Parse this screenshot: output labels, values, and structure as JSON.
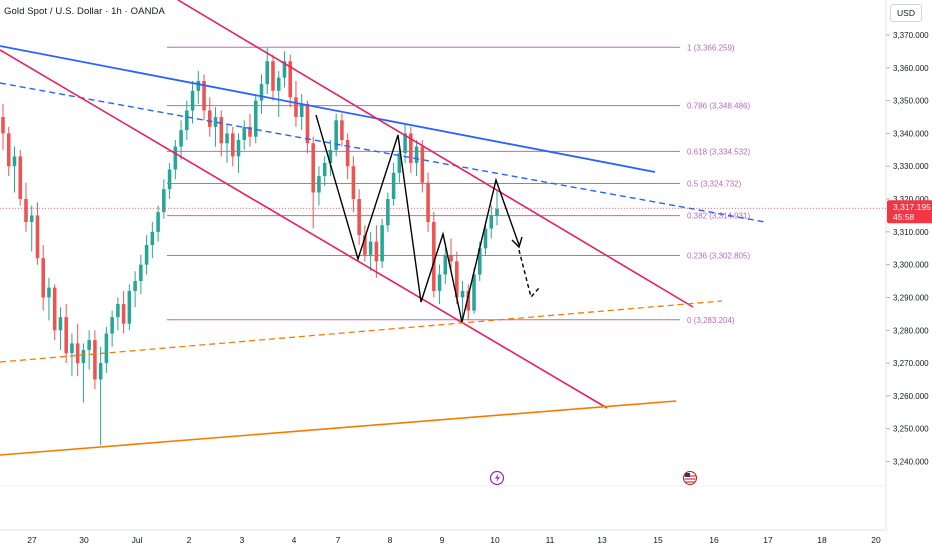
{
  "header": {
    "symbol_title": "Gold Spot / U.S. Dollar · 1h · OANDA",
    "currency": "USD"
  },
  "chart_data": {
    "type": "candlestick",
    "y_axis": {
      "range": [
        3233,
        3378
      ],
      "tick_labels": [
        "3,370.000",
        "3,360.000",
        "3,350.000",
        "3,340.000",
        "3,330.000",
        "3,320.000",
        "3,310.000",
        "3,300.000",
        "3,290.000",
        "3,280.000",
        "3,270.000",
        "3,260.000",
        "3,250.000",
        "3,240.000"
      ],
      "tick_values": [
        3370,
        3360,
        3350,
        3340,
        3330,
        3320,
        3310,
        3300,
        3290,
        3280,
        3270,
        3260,
        3250,
        3240
      ]
    },
    "x_axis": {
      "tick_labels": [
        "27",
        "30",
        "Jul",
        "2",
        "3",
        "4",
        "7",
        "8",
        "9",
        "10",
        "11",
        "13",
        "15",
        "16",
        "17",
        "18",
        "20"
      ]
    },
    "last_price": {
      "value_label": "3,317.195",
      "countdown": "45:58",
      "value": 3317.195,
      "color": "#f23645"
    },
    "fibonacci": {
      "color": "#ba68c8",
      "levels": [
        {
          "label": "1 (3,366.259)",
          "value": 3366.259
        },
        {
          "label": "0.786 (3,348.486)",
          "value": 3348.486
        },
        {
          "label": "0.618 (3,334.532)",
          "value": 3334.532
        },
        {
          "label": "0.5 (3,324.732)",
          "value": 3324.732
        },
        {
          "label": "0.382 (3,314.931)",
          "value": 3314.931
        },
        {
          "label": "0.236 (3,302.805)",
          "value": 3302.805
        },
        {
          "label": "0 (3,283.204)",
          "value": 3283.204
        }
      ]
    },
    "colors": {
      "up": "#26a69a",
      "down": "#ef5350",
      "blue_trendline": "#2962ff",
      "channel": "#e91e63",
      "orange_trendline": "#f57c00",
      "zigzag": "#000000"
    },
    "candles": [
      [
        3345,
        3349,
        3335,
        3340
      ],
      [
        3340,
        3342,
        3327,
        3330
      ],
      [
        3330,
        3336,
        3322,
        3333
      ],
      [
        3333,
        3335,
        3318,
        3320
      ],
      [
        3320,
        3325,
        3310,
        3313
      ],
      [
        3313,
        3318,
        3304,
        3315
      ],
      [
        3315,
        3319,
        3300,
        3302
      ],
      [
        3302,
        3306,
        3286,
        3290
      ],
      [
        3290,
        3296,
        3283,
        3293
      ],
      [
        3293,
        3294,
        3277,
        3280
      ],
      [
        3280,
        3287,
        3274,
        3284
      ],
      [
        3284,
        3288,
        3270,
        3273
      ],
      [
        3273,
        3279,
        3266,
        3276
      ],
      [
        3276,
        3282,
        3266,
        3270
      ],
      [
        3270,
        3276,
        3258,
        3274
      ],
      [
        3274,
        3280,
        3268,
        3277
      ],
      [
        3277,
        3280,
        3262,
        3265
      ],
      [
        3265,
        3275,
        3245,
        3270
      ],
      [
        3270,
        3281,
        3267,
        3279
      ],
      [
        3279,
        3286,
        3275,
        3284
      ],
      [
        3284,
        3290,
        3280,
        3288
      ],
      [
        3288,
        3292,
        3279,
        3282
      ],
      [
        3282,
        3294,
        3280,
        3292
      ],
      [
        3292,
        3298,
        3287,
        3295
      ],
      [
        3295,
        3303,
        3291,
        3300
      ],
      [
        3300,
        3309,
        3297,
        3306
      ],
      [
        3306,
        3313,
        3302,
        3310
      ],
      [
        3310,
        3318,
        3307,
        3316
      ],
      [
        3316,
        3326,
        3314,
        3323
      ],
      [
        3323,
        3331,
        3320,
        3329
      ],
      [
        3329,
        3338,
        3326,
        3336
      ],
      [
        3336,
        3344,
        3332,
        3341
      ],
      [
        3341,
        3350,
        3338,
        3347
      ],
      [
        3347,
        3356,
        3343,
        3353
      ],
      [
        3353,
        3359,
        3349,
        3356
      ],
      [
        3356,
        3358,
        3344,
        3347
      ],
      [
        3347,
        3351,
        3339,
        3342
      ],
      [
        3342,
        3348,
        3336,
        3345
      ],
      [
        3345,
        3347,
        3333,
        3337
      ],
      [
        3337,
        3343,
        3331,
        3340
      ],
      [
        3340,
        3342,
        3330,
        3333
      ],
      [
        3333,
        3340,
        3328,
        3338
      ],
      [
        3338,
        3344,
        3335,
        3342
      ],
      [
        3342,
        3346,
        3336,
        3339
      ],
      [
        3339,
        3352,
        3337,
        3350
      ],
      [
        3350,
        3358,
        3346,
        3355
      ],
      [
        3355,
        3366,
        3352,
        3362
      ],
      [
        3362,
        3364,
        3350,
        3353
      ],
      [
        3353,
        3359,
        3345,
        3357
      ],
      [
        3357,
        3365,
        3354,
        3362
      ],
      [
        3362,
        3364,
        3348,
        3351
      ],
      [
        3351,
        3356,
        3342,
        3345
      ],
      [
        3345,
        3352,
        3341,
        3349
      ],
      [
        3349,
        3350,
        3334,
        3337
      ],
      [
        3337,
        3339,
        3311,
        3322
      ],
      [
        3322,
        3330,
        3318,
        3327
      ],
      [
        3327,
        3333,
        3324,
        3331
      ],
      [
        3331,
        3338,
        3327,
        3335
      ],
      [
        3335,
        3346,
        3333,
        3344
      ],
      [
        3344,
        3346,
        3336,
        3338
      ],
      [
        3338,
        3340,
        3326,
        3330
      ],
      [
        3330,
        3333,
        3316,
        3320
      ],
      [
        3320,
        3323,
        3306,
        3309
      ],
      [
        3309,
        3312,
        3301,
        3303
      ],
      [
        3303,
        3310,
        3298,
        3307
      ],
      [
        3307,
        3312,
        3296,
        3301
      ],
      [
        3301,
        3314,
        3299,
        3312
      ],
      [
        3312,
        3322,
        3310,
        3320
      ],
      [
        3320,
        3331,
        3318,
        3328
      ],
      [
        3328,
        3336,
        3325,
        3334
      ],
      [
        3334,
        3343,
        3331,
        3340
      ],
      [
        3340,
        3342,
        3328,
        3331
      ],
      [
        3331,
        3338,
        3327,
        3336
      ],
      [
        3336,
        3338,
        3322,
        3325
      ],
      [
        3325,
        3328,
        3310,
        3313
      ],
      [
        3313,
        3316,
        3290,
        3292
      ],
      [
        3292,
        3300,
        3288,
        3297
      ],
      [
        3297,
        3305,
        3294,
        3303
      ],
      [
        3303,
        3308,
        3298,
        3301
      ],
      [
        3301,
        3304,
        3288,
        3290
      ],
      [
        3290,
        3295,
        3283,
        3292
      ],
      [
        3292,
        3294,
        3283,
        3286
      ],
      [
        3286,
        3299,
        3285,
        3297
      ],
      [
        3297,
        3307,
        3295,
        3305
      ],
      [
        3305,
        3313,
        3303,
        3311
      ],
      [
        3311,
        3318,
        3308,
        3315
      ],
      [
        3315,
        3323,
        3312,
        3317
      ]
    ]
  }
}
